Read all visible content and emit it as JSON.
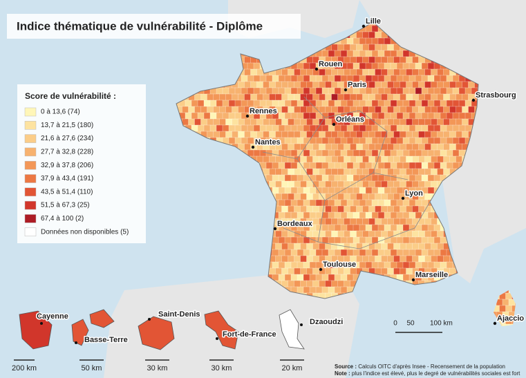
{
  "header": {
    "title": "Indice thématique de vulnérabilité - Diplôme"
  },
  "legend": {
    "title": "Score de vulnérabilité :",
    "items": [
      {
        "label": "0 à 13,6 (74)",
        "color": "#fff6b8"
      },
      {
        "label": "13,7 à 21,5 (180)",
        "color": "#fde3a0"
      },
      {
        "label": "21,6 à 27,6 (234)",
        "color": "#fbcd88"
      },
      {
        "label": "27,7 à 32,8 (228)",
        "color": "#f7b26f"
      },
      {
        "label": "32,9 à 37,8 (206)",
        "color": "#f39757"
      },
      {
        "label": "37,9 à 43,4 (191)",
        "color": "#ec7843"
      },
      {
        "label": "43,5 à 51,4 (110)",
        "color": "#e25535"
      },
      {
        "label": "51,5 à 67,3 (25)",
        "color": "#d1362b"
      },
      {
        "label": "67,4 à 100 (2)",
        "color": "#ad1c25"
      },
      {
        "label": "Données non disponibles (5)",
        "color": "#ffffff"
      }
    ]
  },
  "cities": [
    {
      "label": "Lille"
    },
    {
      "label": "Rouen"
    },
    {
      "label": "Paris"
    },
    {
      "label": "Strasbourg"
    },
    {
      "label": "Rennes"
    },
    {
      "label": "Orléans"
    },
    {
      "label": "Nantes"
    },
    {
      "label": "Lyon"
    },
    {
      "label": "Bordeaux"
    },
    {
      "label": "Toulouse"
    },
    {
      "label": "Marseille"
    },
    {
      "label": "Ajaccio"
    }
  ],
  "insets": [
    {
      "label": "Cayenne"
    },
    {
      "label": "Basse-Terre"
    },
    {
      "label": "Saint-Denis"
    },
    {
      "label": "Fort-de-France"
    },
    {
      "label": "Dzaoudzi"
    }
  ],
  "scale_bars": [
    "200 km",
    "50 km",
    "30 km",
    "30 km",
    "20 km"
  ],
  "main_scale": [
    "0",
    "50",
    "100 km"
  ],
  "footer": {
    "source_label": "Source :",
    "source": "Calculs OITC d'après Insee - Recensement de la population",
    "note_label": "Note :",
    "note": "plus l'indice est élevé, plus le degré de vulnérabilités sociales est fort"
  }
}
